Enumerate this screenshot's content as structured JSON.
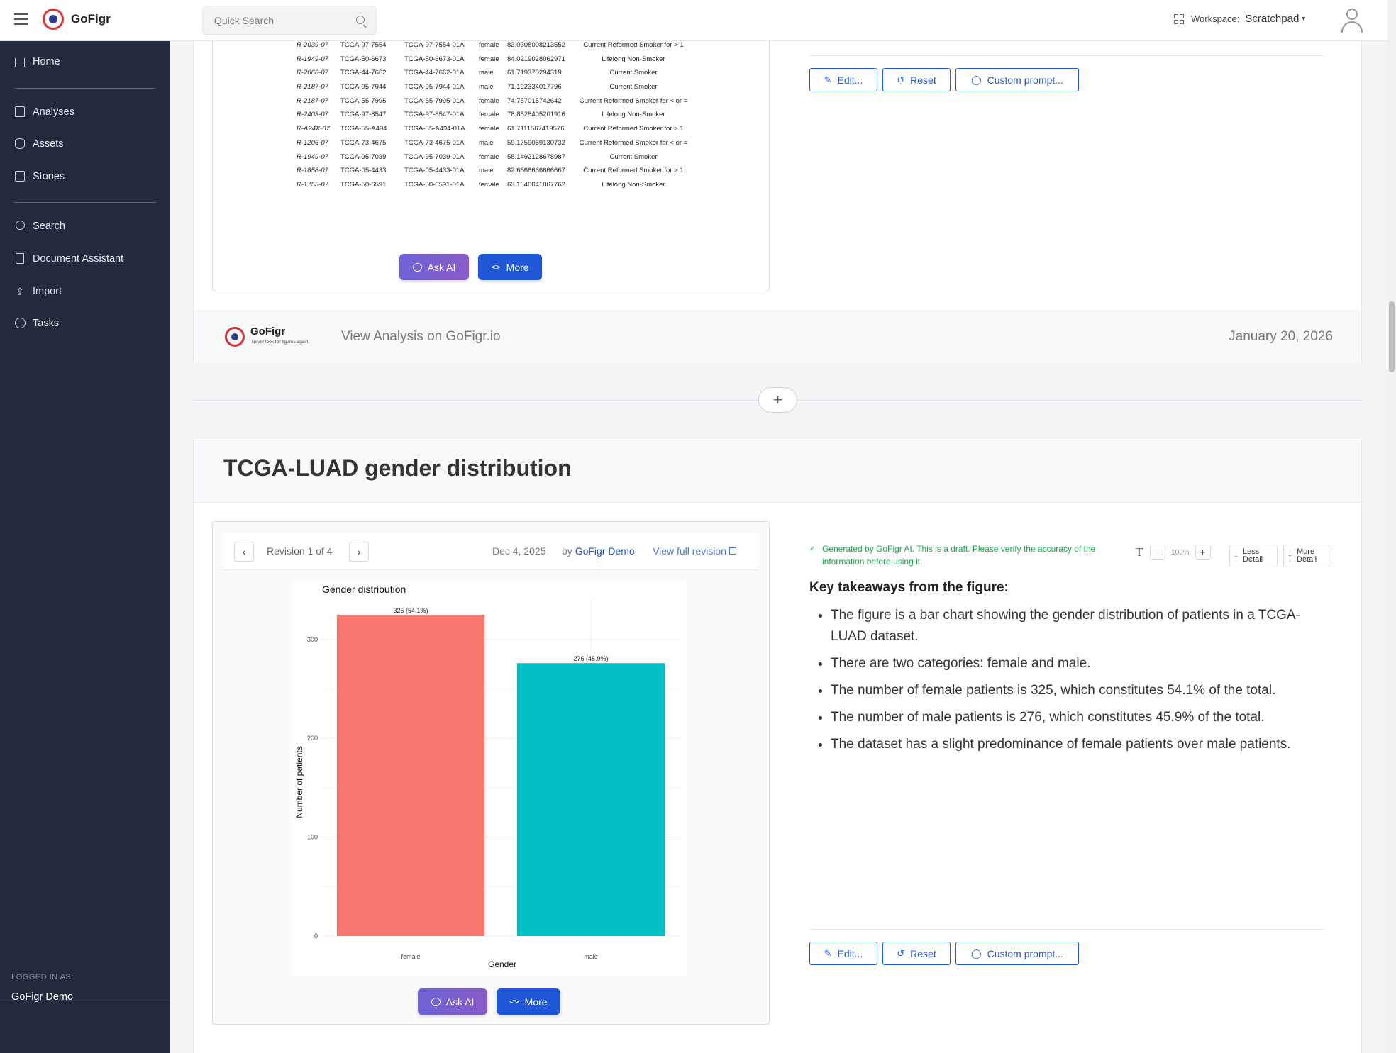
{
  "topbar": {
    "brand": "GoFigr",
    "search_placeholder": "Quick Search",
    "workspace_label": "Workspace:",
    "workspace_value": "Scratchpad"
  },
  "sidebar": {
    "items": [
      {
        "label": "Home",
        "icon": "home-icon"
      },
      {
        "label": "Analyses",
        "icon": "book-icon"
      },
      {
        "label": "Assets",
        "icon": "database-icon"
      },
      {
        "label": "Stories",
        "icon": "open-book-icon"
      },
      {
        "label": "Search",
        "icon": "search-icon"
      },
      {
        "label": "Document Assistant",
        "icon": "document-icon"
      },
      {
        "label": "Import",
        "icon": "upload-icon"
      },
      {
        "label": "Tasks",
        "icon": "clock-icon"
      }
    ],
    "logged_in_label": "LOGGED IN AS:",
    "logged_in_name": "GoFigr Demo"
  },
  "card1": {
    "table_rows": [
      [
        "R-2039-07",
        "TCGA-97-7554",
        "TCGA-97-7554-01A",
        "female",
        "83.0308008213552",
        "Current Reformed Smoker for > 1"
      ],
      [
        "R-1949-07",
        "TCGA-50-6673",
        "TCGA-50-6673-01A",
        "female",
        "84.0219028062971",
        "Lifelong Non-Smoker"
      ],
      [
        "R-2066-07",
        "TCGA-44-7662",
        "TCGA-44-7662-01A",
        "male",
        "61.719370294319",
        "Current Smoker"
      ],
      [
        "R-2187-07",
        "TCGA-95-7944",
        "TCGA-95-7944-01A",
        "male",
        "71.192334017796",
        "Current Smoker"
      ],
      [
        "R-2187-07",
        "TCGA-55-7995",
        "TCGA-55-7995-01A",
        "female",
        "74.757015742642",
        "Current Reformed Smoker for < or ="
      ],
      [
        "R-2403-07",
        "TCGA-97-8547",
        "TCGA-97-8547-01A",
        "female",
        "78.8528405201916",
        "Lifelong Non-Smoker"
      ],
      [
        "R-A24X-07",
        "TCGA-55-A494",
        "TCGA-55-A494-01A",
        "female",
        "61.7111567419576",
        "Current Reformed Smoker for > 1"
      ],
      [
        "R-1206-07",
        "TCGA-73-4675",
        "TCGA-73-4675-01A",
        "male",
        "59.1759069130732",
        "Current Reformed Smoker for < or ="
      ],
      [
        "R-1949-07",
        "TCGA-95-7039",
        "TCGA-95-7039-01A",
        "female",
        "58.1492128678987",
        "Current Smoker"
      ],
      [
        "R-1858-07",
        "TCGA-05-4433",
        "TCGA-05-4433-01A",
        "male",
        "82.6666666666667",
        "Current Reformed Smoker for > 1"
      ],
      [
        "R-1755-07",
        "TCGA-50-6591",
        "TCGA-50-6591-01A",
        "female",
        "63.1540041067762",
        "Lifelong Non-Smoker"
      ]
    ],
    "ask_ai_label": "Ask AI",
    "more_label": "More",
    "edit_label": "Edit...",
    "reset_label": "Reset",
    "custom_prompt_label": "Custom prompt...",
    "footer_brand": "GoFigr",
    "footer_tagline": "Never look for figures again.",
    "footer_link": "View Analysis on GoFigr.io",
    "footer_date": "January 20, 2026"
  },
  "card2": {
    "title": "TCGA-LUAD gender distribution",
    "revision_text": "Revision 1 of 4",
    "revision_date": "Dec 4, 2025",
    "revision_by_prefix": "by",
    "revision_author": "GoFigr Demo",
    "view_full_revision": "View full revision",
    "ask_ai_label": "Ask AI",
    "more_label": "More",
    "generated_note": "Generated by GoFigr AI. This is a draft. Please verify the accuracy of the information before using it.",
    "zoom": "100%",
    "less_detail": "Less Detail",
    "more_detail": "More Detail",
    "takeaways_title": "Key takeaways from the figure:",
    "takeaways": [
      "The figure is a bar chart showing the gender distribution of patients in a TCGA-LUAD dataset.",
      "There are two categories: female and male.",
      "The number of female patients is 325, which constitutes 54.1% of the total.",
      "The number of male patients is 276, which constitutes 45.9% of the total.",
      "The dataset has a slight predominance of female patients over male patients."
    ],
    "edit_label": "Edit...",
    "reset_label": "Reset",
    "custom_prompt_label": "Custom prompt..."
  },
  "chart_data": {
    "type": "bar",
    "title": "Gender distribution",
    "xlabel": "Gender",
    "ylabel": "Number of patients",
    "categories": [
      "female",
      "male"
    ],
    "values": [
      325,
      276
    ],
    "data_labels": [
      "325 (54.1%)",
      "276 (45.9%)"
    ],
    "colors": [
      "#f8766d",
      "#00bfc4"
    ],
    "ylim": [
      0,
      340
    ],
    "yticks": [
      0,
      100,
      200,
      300
    ],
    "grid": true,
    "legend": "none"
  }
}
